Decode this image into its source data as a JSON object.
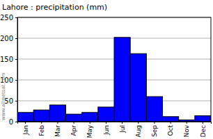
{
  "chart_data": {
    "type": "bar",
    "title": "Lahore : precipitation (mm)",
    "categories": [
      "Jan",
      "Feb",
      "Mar",
      "Apr",
      "May",
      "Jun",
      "Jul",
      "Aug",
      "Sep",
      "Oct",
      "Nov",
      "Dec"
    ],
    "values": [
      22,
      28,
      40,
      18,
      22,
      35,
      202,
      163,
      60,
      12,
      4,
      14
    ],
    "color": "#0000ff",
    "ylim": [
      0,
      250
    ],
    "yticks": [
      0,
      50,
      100,
      150,
      200,
      250
    ],
    "grid": true,
    "annotations": [
      "www.allmetsat.com"
    ]
  }
}
